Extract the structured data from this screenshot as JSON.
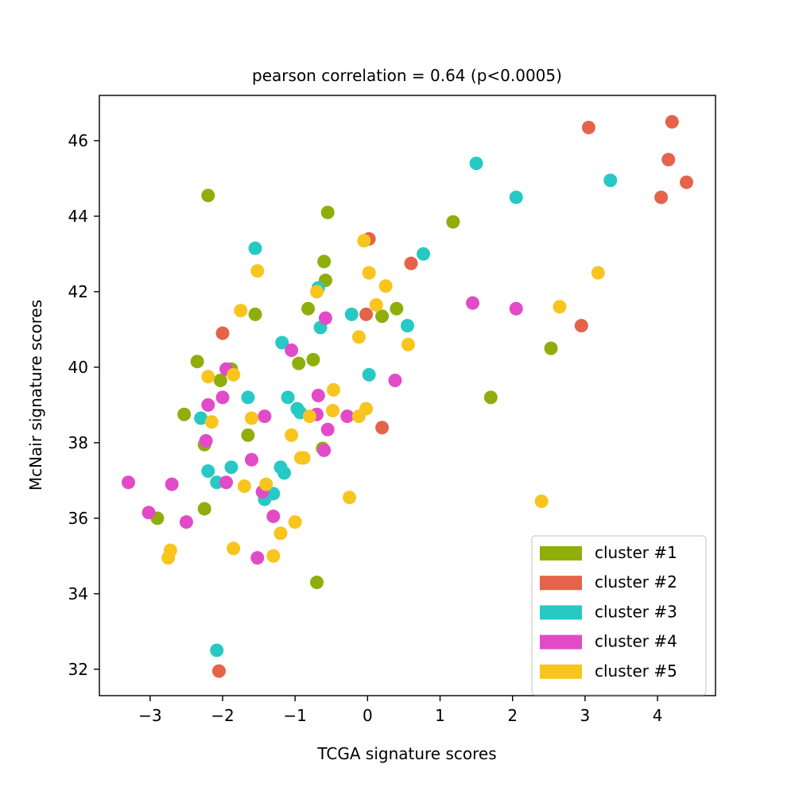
{
  "chart_data": {
    "type": "scatter",
    "title": "pearson correlation = 0.64 (p<0.0005)",
    "xlabel": "TCGA signature scores",
    "ylabel": "McNair signature scores",
    "xlim": [
      -3.7,
      4.8
    ],
    "ylim": [
      31.3,
      47.2
    ],
    "x_ticks": [
      -3,
      -2,
      -1,
      0,
      1,
      2,
      3,
      4
    ],
    "x_tick_labels": [
      "−3",
      "−2",
      "−1",
      "0",
      "1",
      "2",
      "3",
      "4"
    ],
    "y_ticks": [
      32,
      34,
      36,
      38,
      40,
      42,
      44,
      46
    ],
    "y_tick_labels": [
      "32",
      "34",
      "36",
      "38",
      "40",
      "42",
      "44",
      "46"
    ],
    "grid": false,
    "legend_position": "bottom-right",
    "series": [
      {
        "name": "cluster #1",
        "color": "#8fae0c",
        "points": [
          [
            -2.2,
            44.55
          ],
          [
            -0.55,
            44.1
          ],
          [
            1.18,
            43.85
          ],
          [
            -0.6,
            42.8
          ],
          [
            -0.58,
            42.3
          ],
          [
            -0.82,
            41.55
          ],
          [
            -1.55,
            41.4
          ],
          [
            0.2,
            41.35
          ],
          [
            0.4,
            41.55
          ],
          [
            2.53,
            40.5
          ],
          [
            -2.35,
            40.15
          ],
          [
            -0.75,
            40.2
          ],
          [
            -0.95,
            40.1
          ],
          [
            -1.88,
            39.95
          ],
          [
            -2.03,
            39.65
          ],
          [
            1.7,
            39.2
          ],
          [
            -2.53,
            38.75
          ],
          [
            -1.65,
            38.2
          ],
          [
            -2.25,
            37.95
          ],
          [
            -0.62,
            37.85
          ],
          [
            -2.25,
            36.25
          ],
          [
            -2.9,
            36.0
          ],
          [
            -0.7,
            34.3
          ]
        ]
      },
      {
        "name": "cluster #2",
        "color": "#e4634a",
        "points": [
          [
            4.2,
            46.5
          ],
          [
            3.05,
            46.35
          ],
          [
            4.15,
            45.5
          ],
          [
            4.4,
            44.9
          ],
          [
            4.05,
            44.5
          ],
          [
            0.02,
            43.4
          ],
          [
            0.6,
            42.75
          ],
          [
            -2.0,
            40.9
          ],
          [
            -0.02,
            41.4
          ],
          [
            2.95,
            41.1
          ],
          [
            0.2,
            38.4
          ],
          [
            -2.05,
            31.95
          ]
        ]
      },
      {
        "name": "cluster #3",
        "color": "#27c9c4",
        "points": [
          [
            1.5,
            45.4
          ],
          [
            3.35,
            44.95
          ],
          [
            2.05,
            44.5
          ],
          [
            -1.55,
            43.15
          ],
          [
            0.77,
            43.0
          ],
          [
            -0.68,
            42.1
          ],
          [
            -0.22,
            41.4
          ],
          [
            0.55,
            41.1
          ],
          [
            -0.65,
            41.05
          ],
          [
            -1.18,
            40.65
          ],
          [
            0.02,
            39.8
          ],
          [
            -1.65,
            39.2
          ],
          [
            -1.1,
            39.2
          ],
          [
            -0.97,
            38.9
          ],
          [
            -0.93,
            38.8
          ],
          [
            -2.3,
            38.65
          ],
          [
            -1.88,
            37.35
          ],
          [
            -2.2,
            37.25
          ],
          [
            -1.2,
            37.35
          ],
          [
            -1.15,
            37.2
          ],
          [
            -2.08,
            36.95
          ],
          [
            -1.42,
            36.5
          ],
          [
            -1.3,
            36.65
          ],
          [
            -2.08,
            32.5
          ]
        ]
      },
      {
        "name": "cluster #4",
        "color": "#e24bc8",
        "points": [
          [
            1.45,
            41.7
          ],
          [
            2.05,
            41.55
          ],
          [
            -0.58,
            41.3
          ],
          [
            -1.05,
            40.45
          ],
          [
            -1.95,
            39.95
          ],
          [
            0.38,
            39.65
          ],
          [
            -2.0,
            39.2
          ],
          [
            -0.68,
            39.25
          ],
          [
            -2.2,
            39.0
          ],
          [
            -1.42,
            38.7
          ],
          [
            -0.7,
            38.75
          ],
          [
            -0.28,
            38.7
          ],
          [
            -0.55,
            38.35
          ],
          [
            -2.23,
            38.05
          ],
          [
            -0.6,
            37.8
          ],
          [
            -1.6,
            37.55
          ],
          [
            -3.3,
            36.95
          ],
          [
            -2.7,
            36.9
          ],
          [
            -1.95,
            36.95
          ],
          [
            -1.45,
            36.7
          ],
          [
            -3.02,
            36.15
          ],
          [
            -1.3,
            36.05
          ],
          [
            -2.5,
            35.9
          ],
          [
            -1.52,
            34.95
          ]
        ]
      },
      {
        "name": "cluster #5",
        "color": "#f8c51e",
        "points": [
          [
            -0.05,
            43.35
          ],
          [
            -1.52,
            42.55
          ],
          [
            0.02,
            42.5
          ],
          [
            0.25,
            42.15
          ],
          [
            -0.7,
            42.0
          ],
          [
            0.12,
            41.65
          ],
          [
            -1.75,
            41.5
          ],
          [
            2.65,
            41.6
          ],
          [
            3.18,
            42.5
          ],
          [
            -0.12,
            40.8
          ],
          [
            0.56,
            40.6
          ],
          [
            -1.85,
            39.8
          ],
          [
            -2.2,
            39.75
          ],
          [
            -0.47,
            39.4
          ],
          [
            -0.02,
            38.9
          ],
          [
            -1.6,
            38.65
          ],
          [
            -0.8,
            38.7
          ],
          [
            -0.48,
            38.85
          ],
          [
            -0.12,
            38.7
          ],
          [
            -2.15,
            38.55
          ],
          [
            -1.05,
            38.2
          ],
          [
            -0.92,
            37.6
          ],
          [
            -0.88,
            37.6
          ],
          [
            -1.4,
            36.9
          ],
          [
            -1.7,
            36.85
          ],
          [
            -0.25,
            36.55
          ],
          [
            2.4,
            36.45
          ],
          [
            -1.0,
            35.9
          ],
          [
            -1.2,
            35.6
          ],
          [
            -2.72,
            35.15
          ],
          [
            -1.85,
            35.2
          ],
          [
            -2.75,
            34.95
          ],
          [
            -1.3,
            35.0
          ]
        ]
      }
    ]
  }
}
